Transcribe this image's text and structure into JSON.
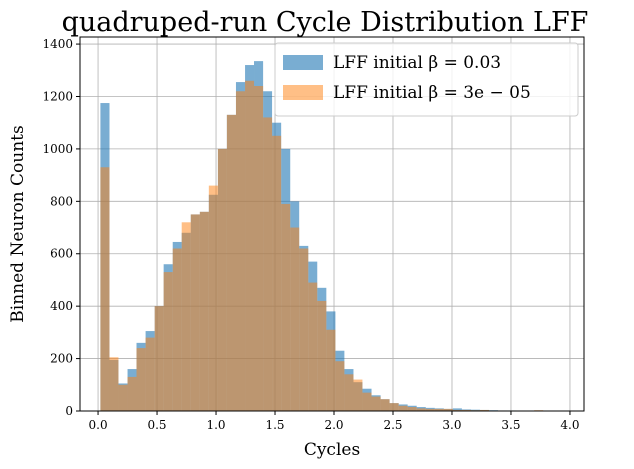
{
  "chart_data": {
    "type": "histogram",
    "title": "quadruped-run Cycle Distribution LFF",
    "x_label": "Cycles",
    "y_label": "Binned Neuron Counts",
    "bins": [
      0.02,
      0.097,
      0.173,
      0.25,
      0.326,
      0.403,
      0.48,
      0.556,
      0.633,
      0.709,
      0.786,
      0.863,
      0.939,
      1.016,
      1.092,
      1.169,
      1.246,
      1.322,
      1.399,
      1.475,
      1.552,
      1.629,
      1.705,
      1.782,
      1.858,
      1.935,
      2.012,
      2.088,
      2.165,
      2.241,
      2.318,
      2.395,
      2.471,
      2.548,
      2.624,
      2.701,
      2.778,
      2.854,
      2.931,
      3.007,
      3.084,
      3.161,
      3.237,
      3.314,
      3.39,
      3.467,
      3.544,
      3.62,
      3.697,
      3.773,
      3.85
    ],
    "series": [
      {
        "name": "LFF initial β = 0.03",
        "color": "#1f77b4",
        "opacity": 0.6,
        "values": [
          1175,
          195,
          105,
          160,
          260,
          305,
          400,
          560,
          645,
          680,
          750,
          760,
          825,
          1000,
          1130,
          1255,
          1320,
          1335,
          1220,
          1100,
          1000,
          800,
          630,
          570,
          470,
          380,
          230,
          160,
          110,
          85,
          60,
          45,
          30,
          25,
          20,
          15,
          12,
          10,
          8,
          10,
          6,
          5,
          4,
          3,
          2,
          2,
          1,
          1,
          2,
          1
        ]
      },
      {
        "name": "LFF initial β = 3e − 05",
        "color": "#ff7f0e",
        "opacity": 0.5,
        "values": [
          930,
          205,
          100,
          130,
          240,
          280,
          400,
          530,
          620,
          720,
          750,
          760,
          860,
          1000,
          1130,
          1220,
          1260,
          1240,
          1120,
          1050,
          790,
          700,
          620,
          490,
          420,
          310,
          190,
          140,
          120,
          70,
          55,
          45,
          30,
          20,
          15,
          10,
          8,
          8,
          8,
          4,
          4,
          3,
          4,
          2,
          2,
          1,
          1,
          1,
          3,
          1
        ]
      }
    ],
    "xlim": [
      -0.153,
      4.119
    ],
    "ylim": [
      0,
      1427
    ],
    "xticks": [
      {
        "value": 0,
        "label": "0.0"
      },
      0.5,
      {
        "value": 1,
        "label": "1.0"
      },
      1.5,
      {
        "value": 2,
        "label": "2.0"
      },
      2.5,
      {
        "value": 3,
        "label": "3.0"
      },
      3.5,
      {
        "value": 4,
        "label": "4.0"
      }
    ],
    "yticks": [
      0,
      200,
      400,
      600,
      800,
      1000,
      1200,
      1400
    ],
    "grid": true,
    "legend": "upper right"
  }
}
